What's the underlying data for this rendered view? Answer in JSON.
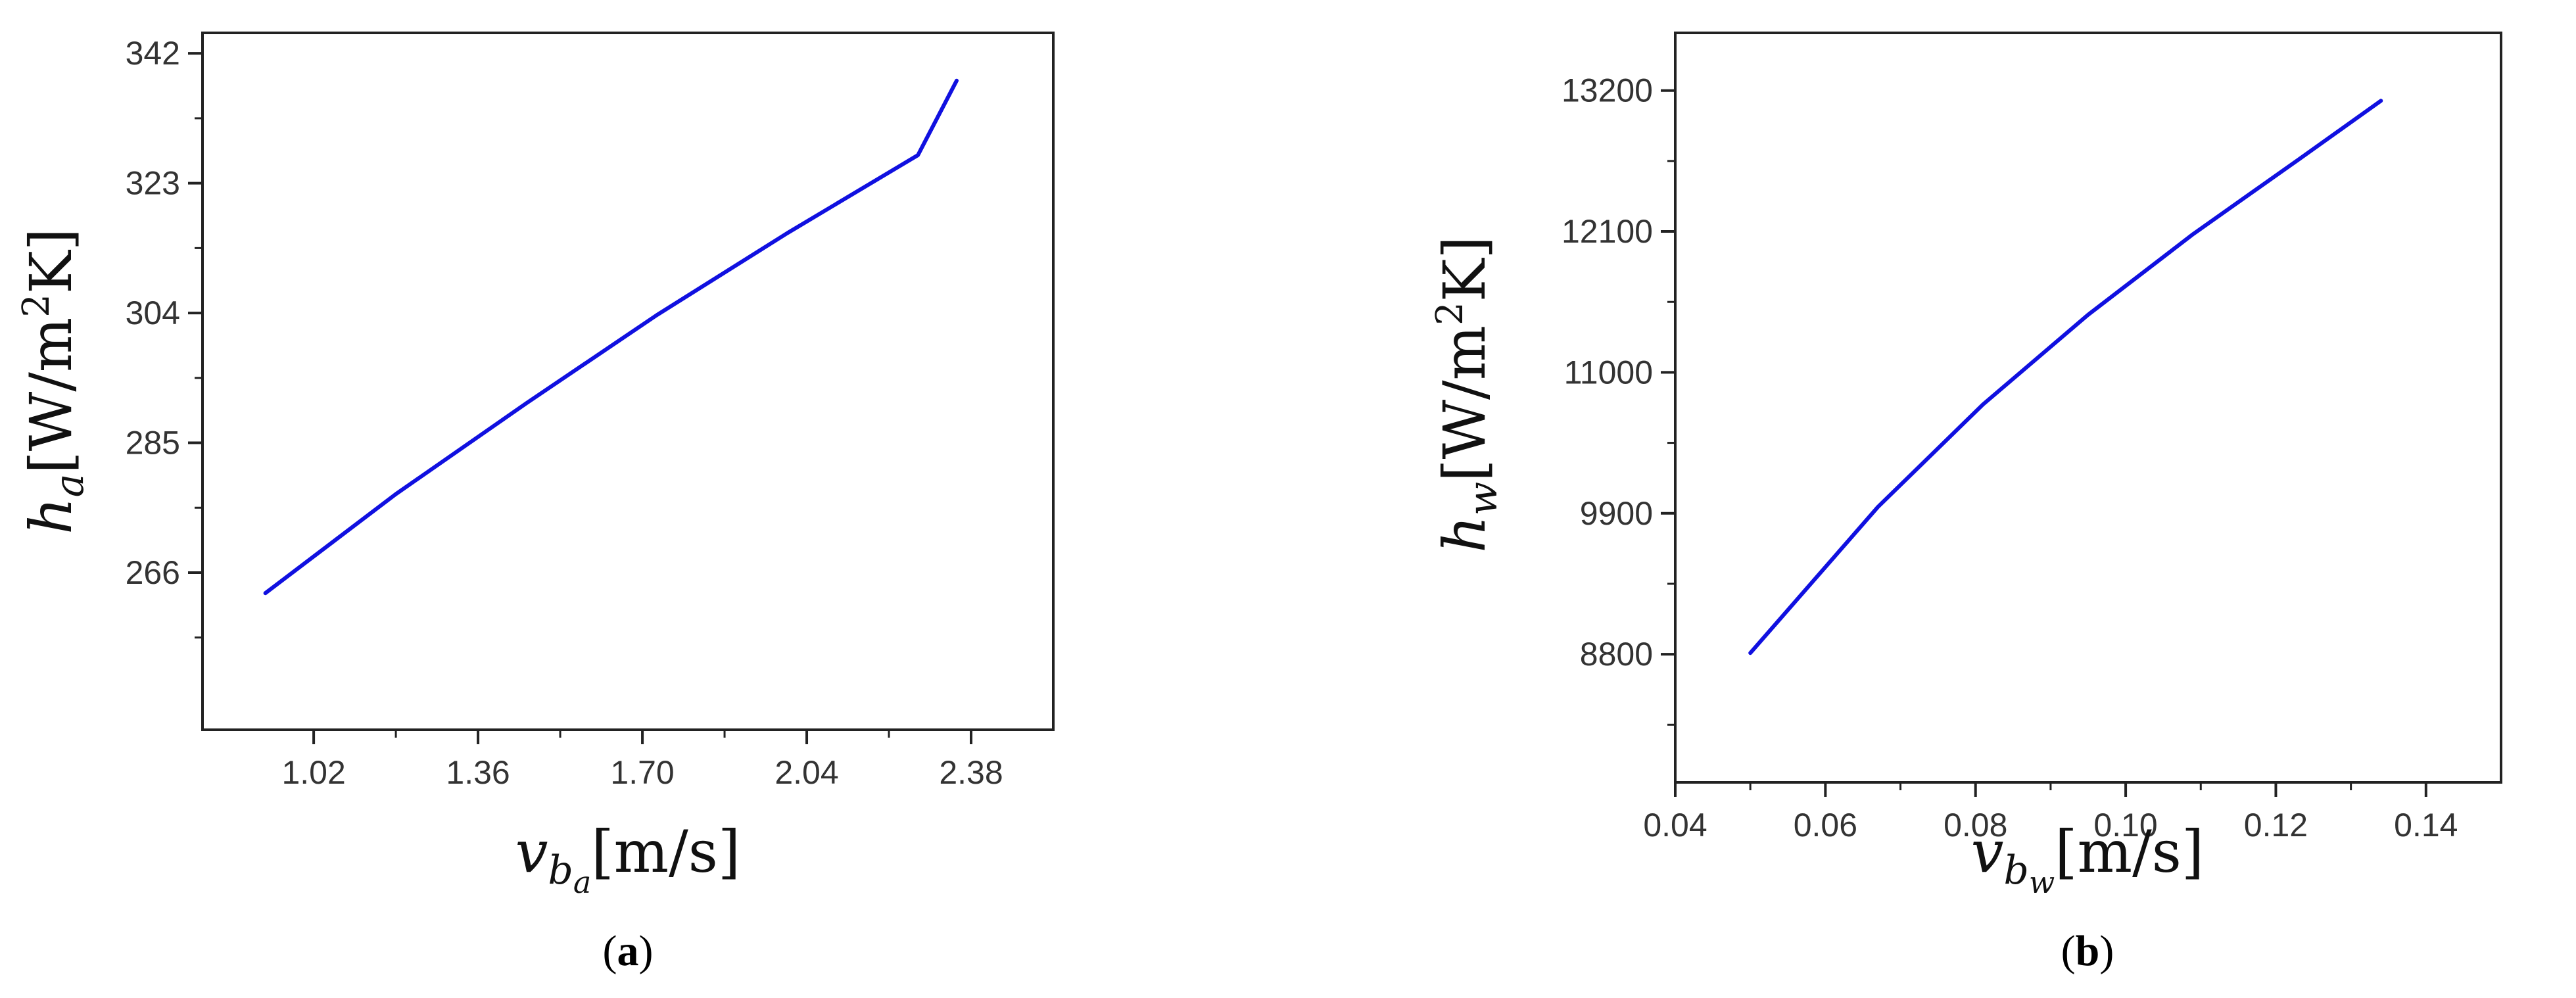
{
  "chart_data": [
    {
      "type": "line",
      "panel_label_open": "(",
      "panel_label_letter": "a",
      "panel_label_close": ")",
      "ylabel_var": "h",
      "ylabel_sub": "a",
      "ylabel_unit": "[W/m",
      "ylabel_exp": "2",
      "ylabel_unit_end": "K]",
      "xlabel_var": "v",
      "xlabel_sub": "b",
      "xlabel_subsub": "a",
      "xlabel_unit": "[m/s]",
      "xlim": [
        0.79,
        2.55
      ],
      "ylim": [
        243,
        345
      ],
      "x_ticks": [
        1.02,
        1.36,
        1.7,
        2.04,
        2.38
      ],
      "x_tick_labels": [
        "1.02",
        "1.36",
        "1.70",
        "2.04",
        "2.38"
      ],
      "y_ticks": [
        266,
        285,
        304,
        323,
        342
      ],
      "y_tick_labels": [
        "266",
        "285",
        "304",
        "323",
        "342"
      ],
      "line_color": "#1010e0",
      "series": [
        {
          "x": [
            0.92,
            1.19,
            1.46,
            1.73,
            2.0,
            2.27,
            2.35
          ],
          "y": [
            263,
            277.5,
            290.8,
            303.7,
            315.7,
            327.1,
            338
          ]
        }
      ]
    },
    {
      "type": "line",
      "panel_label_open": "(",
      "panel_label_letter": "b",
      "panel_label_close": ")",
      "ylabel_var": "h",
      "ylabel_sub": "w",
      "ylabel_unit": "[W/m",
      "ylabel_exp": "2",
      "ylabel_unit_end": "K]",
      "xlabel_var": "v",
      "xlabel_sub": "b",
      "xlabel_subsub": "w",
      "xlabel_unit": "[m/s]",
      "xlim": [
        0.04,
        0.15
      ],
      "ylim": [
        7800,
        13650
      ],
      "x_ticks": [
        0.04,
        0.06,
        0.08,
        0.1,
        0.12,
        0.14
      ],
      "x_tick_labels": [
        "0.04",
        "0.06",
        "0.08",
        "0.10",
        "0.12",
        "0.14"
      ],
      "y_ticks": [
        8800,
        9900,
        11000,
        12100,
        13200
      ],
      "y_tick_labels": [
        "8800",
        "9900",
        "11000",
        "12100",
        "13200"
      ],
      "line_color": "#1010e0",
      "series": [
        {
          "x": [
            0.05,
            0.067,
            0.081,
            0.095,
            0.109,
            0.123,
            0.134
          ],
          "y": [
            8810,
            9950,
            10750,
            11450,
            12080,
            12660,
            13120
          ]
        }
      ]
    }
  ]
}
